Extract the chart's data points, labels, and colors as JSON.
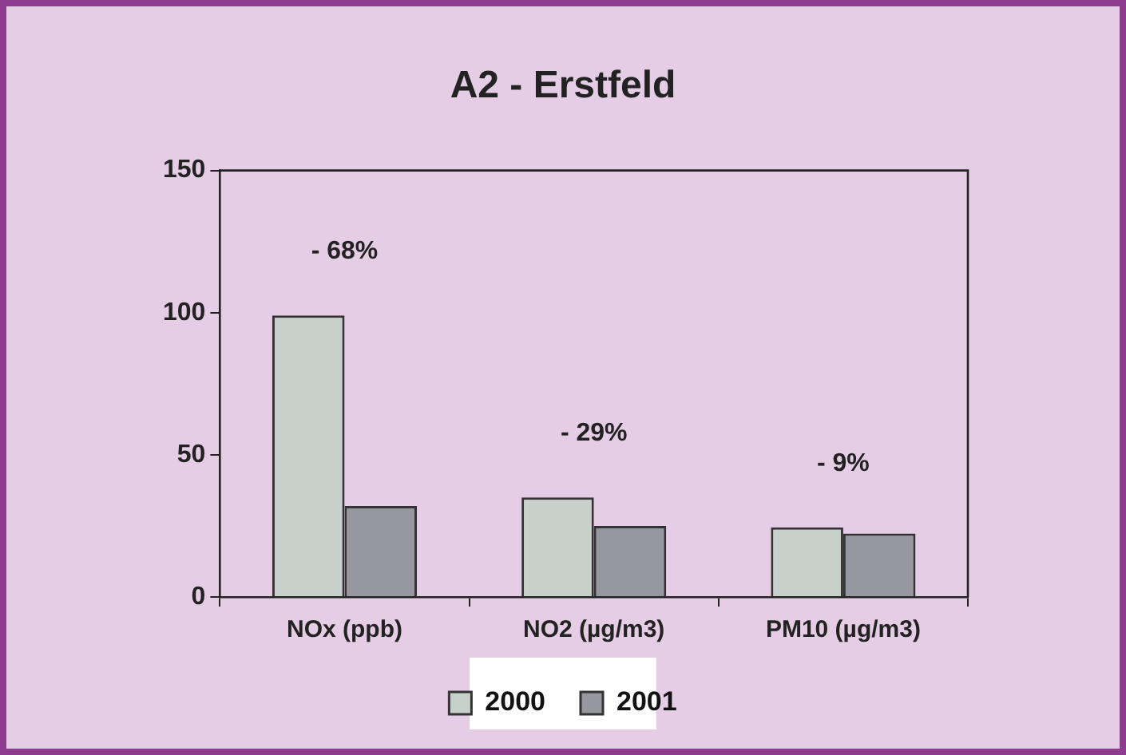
{
  "chart_data": {
    "type": "bar",
    "title": "A2 - Erstfeld",
    "categories": [
      "NOx (ppb)",
      "NO2 (µg/m3)",
      "PM10 (µg/m3)"
    ],
    "series": [
      {
        "name": "2000",
        "color": "#c8d0cc",
        "values": [
          99,
          35,
          24.5
        ]
      },
      {
        "name": "2001",
        "color": "#97979f",
        "values": [
          32,
          25,
          22.3
        ]
      }
    ],
    "ylim": [
      0,
      150
    ],
    "yticks": [
      0,
      50,
      100,
      150
    ],
    "grid": false,
    "legend": "bottom",
    "annotations": [
      "- 68%",
      "- 29%",
      "- 9%"
    ]
  }
}
